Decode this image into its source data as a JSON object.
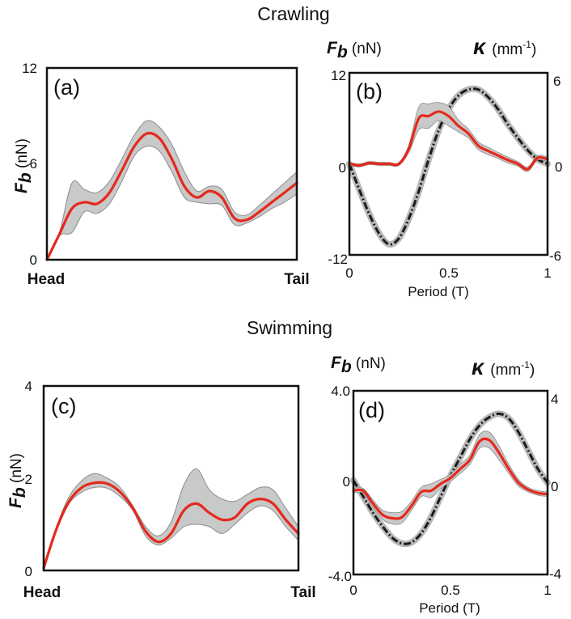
{
  "sections": {
    "top_title": "Crawling",
    "bottom_title": "Swimming"
  },
  "axis_text": {
    "fb_symbol": "F",
    "fb_sub": "b",
    "fb_unit": " (nN)",
    "fb_unit_vertical": "(nN)",
    "kappa_symbol": "κ",
    "kappa_unit": "(mm",
    "kappa_exp": "-1",
    "kappa_close": ")",
    "head": "Head",
    "tail": "Tail",
    "period_label": "Period (T)"
  },
  "colors": {
    "mean_line": "#e5291c",
    "band_fill": "#c8c9c9",
    "band_stroke": "#8c8c8c",
    "band_red": "#f07c72",
    "curvature_line": "#1a1a1a",
    "curvature_band": "#b8b8b8"
  },
  "chart_data": [
    {
      "id": "a",
      "label": "(a)",
      "type": "line",
      "title": "Crawling",
      "xlabel": "Head → Tail",
      "ylabel": "F_b (nN)",
      "ylim": [
        0,
        12
      ],
      "yticks": [
        "0",
        "6",
        "12"
      ],
      "x": [
        0,
        0.05,
        0.1,
        0.15,
        0.2,
        0.25,
        0.3,
        0.35,
        0.4,
        0.45,
        0.5,
        0.55,
        0.6,
        0.65,
        0.7,
        0.75,
        0.8,
        0.85,
        0.9,
        0.95,
        1.0
      ],
      "series": [
        {
          "name": "Fb mean",
          "values": [
            0,
            1.6,
            3.2,
            3.6,
            3.5,
            4.2,
            5.6,
            7.1,
            7.9,
            7.6,
            6.3,
            4.6,
            3.9,
            4.3,
            3.9,
            2.6,
            2.5,
            3.0,
            3.6,
            4.2,
            4.8
          ]
        },
        {
          "name": "Fb upper",
          "values": [
            0,
            1.7,
            4.8,
            4.4,
            4.2,
            4.9,
            6.3,
            7.8,
            8.7,
            8.3,
            7.2,
            5.5,
            4.3,
            4.6,
            4.4,
            3.0,
            2.8,
            3.4,
            4.1,
            4.8,
            5.5
          ]
        },
        {
          "name": "Fb lower",
          "values": [
            0,
            1.5,
            1.7,
            3.0,
            2.9,
            3.5,
            4.9,
            6.5,
            7.1,
            6.8,
            5.5,
            3.9,
            3.6,
            3.5,
            3.4,
            2.2,
            2.3,
            2.7,
            3.2,
            3.6,
            4.1
          ]
        }
      ]
    },
    {
      "id": "b",
      "label": "(b)",
      "type": "line",
      "title": "Crawling",
      "xlabel": "Period (T)",
      "ylabel": "F_b (nN)",
      "ylabel_right": "κ (mm-1)",
      "ylim": [
        -12,
        12
      ],
      "ylim_right": [
        -6,
        6
      ],
      "xlim": [
        0,
        1
      ],
      "xticks": [
        "0",
        "0.5",
        "1"
      ],
      "yticks": [
        "-12",
        "0",
        "12"
      ],
      "yticks_right": [
        "-6",
        "0",
        "6"
      ],
      "x": [
        0,
        0.05,
        0.1,
        0.15,
        0.2,
        0.25,
        0.3,
        0.35,
        0.4,
        0.45,
        0.5,
        0.55,
        0.6,
        0.65,
        0.7,
        0.75,
        0.8,
        0.85,
        0.9,
        0.95,
        1.0
      ],
      "series": [
        {
          "name": "Fb mean",
          "values": [
            0,
            -0.2,
            0.1,
            0,
            0,
            0,
            2,
            6,
            6.3,
            6.9,
            6.3,
            5,
            4,
            2.4,
            1.7,
            1.1,
            0.5,
            0,
            -0.7,
            0.8,
            0.6
          ]
        },
        {
          "name": "Fb band half-width",
          "values": [
            0.2,
            0.2,
            0.2,
            0.2,
            0.2,
            0.2,
            0.5,
            1.5,
            1.6,
            1.2,
            1.3,
            0.8,
            0.6,
            0.5,
            0.5,
            0.4,
            0.4,
            0.3,
            0.3,
            0.3,
            0.3
          ]
        },
        {
          "name": "curvature",
          "values": [
            0,
            -1.7,
            -3.3,
            -4.6,
            -5.3,
            -4.9,
            -3.6,
            -1.8,
            0.3,
            2.2,
            3.6,
            4.5,
            4.9,
            4.9,
            4.4,
            3.6,
            2.6,
            1.7,
            0.9,
            0.3,
            0
          ]
        }
      ]
    },
    {
      "id": "c",
      "label": "(c)",
      "type": "line",
      "title": "Swimming",
      "xlabel": "Head → Tail",
      "ylabel": "F_b (nN)",
      "ylim": [
        0,
        4
      ],
      "yticks": [
        "0",
        "2",
        "4"
      ],
      "x": [
        0,
        0.05,
        0.1,
        0.15,
        0.2,
        0.25,
        0.3,
        0.35,
        0.4,
        0.45,
        0.5,
        0.55,
        0.6,
        0.65,
        0.7,
        0.75,
        0.8,
        0.85,
        0.9,
        0.95,
        1.0
      ],
      "series": [
        {
          "name": "Fb mean",
          "values": [
            0.05,
            0.9,
            1.5,
            1.8,
            1.9,
            1.88,
            1.7,
            1.35,
            0.85,
            0.62,
            0.8,
            1.3,
            1.45,
            1.25,
            1.1,
            1.15,
            1.45,
            1.55,
            1.45,
            1.1,
            0.8
          ]
        },
        {
          "name": "Fb upper",
          "values": [
            0.07,
            0.95,
            1.6,
            1.95,
            2.1,
            2.0,
            1.8,
            1.4,
            0.95,
            0.75,
            1.05,
            1.85,
            2.2,
            1.75,
            1.55,
            1.5,
            1.65,
            1.8,
            1.75,
            1.35,
            0.95
          ]
        },
        {
          "name": "Fb lower",
          "values": [
            0.03,
            0.85,
            1.45,
            1.7,
            1.8,
            1.78,
            1.6,
            1.3,
            0.75,
            0.55,
            0.7,
            0.95,
            1.0,
            0.95,
            0.8,
            1.0,
            1.25,
            1.4,
            1.3,
            0.95,
            0.65
          ]
        }
      ]
    },
    {
      "id": "d",
      "label": "(d)",
      "type": "line",
      "title": "Swimming",
      "xlabel": "Period (T)",
      "ylabel": "F_b (nN)",
      "ylabel_right": "κ (mm-1)",
      "ylim": [
        -4,
        4
      ],
      "ylim_right": [
        -4,
        4
      ],
      "xlim": [
        0,
        1
      ],
      "xticks": [
        "0",
        "0.5",
        "1"
      ],
      "yticks": [
        "-4.0",
        "0",
        "4.0"
      ],
      "yticks_right": [
        "-4",
        "0",
        "4"
      ],
      "x": [
        0,
        0.05,
        0.1,
        0.15,
        0.2,
        0.25,
        0.3,
        0.35,
        0.4,
        0.45,
        0.5,
        0.55,
        0.6,
        0.65,
        0.7,
        0.75,
        0.8,
        0.85,
        0.9,
        0.95,
        1.0
      ],
      "series": [
        {
          "name": "Fb mean",
          "values": [
            -0.35,
            -0.35,
            -0.9,
            -1.4,
            -1.55,
            -1.5,
            -1.0,
            -0.4,
            -0.35,
            -0.05,
            0.2,
            0.6,
            1.0,
            1.8,
            1.85,
            1.3,
            0.6,
            0,
            -0.3,
            -0.45,
            -0.5
          ]
        },
        {
          "name": "Fb band half-width",
          "values": [
            0.1,
            0.1,
            0.15,
            0.2,
            0.25,
            0.25,
            0.2,
            0.2,
            0.3,
            0.2,
            0.15,
            0.2,
            0.2,
            0.3,
            0.35,
            0.3,
            0.2,
            0.15,
            0.1,
            0.1,
            0.1
          ]
        },
        {
          "name": "curvature",
          "values": [
            0.1,
            -0.6,
            -1.3,
            -1.9,
            -2.4,
            -2.65,
            -2.6,
            -2.2,
            -1.5,
            -0.6,
            0.3,
            1.1,
            1.9,
            2.5,
            2.85,
            3.0,
            2.8,
            2.2,
            1.4,
            0.6,
            0
          ]
        }
      ]
    }
  ]
}
